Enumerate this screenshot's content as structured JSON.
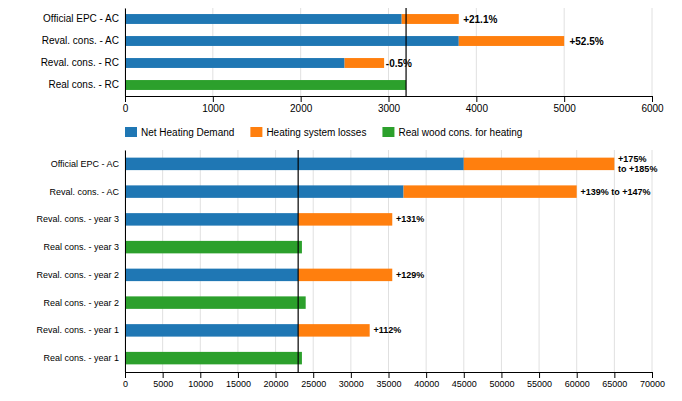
{
  "chart_data": [
    {
      "type": "bar",
      "orientation": "horizontal",
      "stacked": true,
      "categories": [
        "Official EPC - AC",
        "Reval. cons. - AC",
        "Reval. cons. - RC",
        "Real cons. - RC"
      ],
      "series": [
        {
          "name": "Net Heating Demand",
          "values": [
            3150,
            3800,
            2500,
            0
          ]
        },
        {
          "name": "Heating system losses",
          "values": [
            650,
            1200,
            450,
            0
          ]
        },
        {
          "name": "Real wood cons. for heating",
          "values": [
            0,
            0,
            0,
            3200
          ]
        }
      ],
      "reference_x": 3200,
      "annotations": [
        {
          "text": "+21.1%",
          "x": 3850,
          "category": "Official EPC - AC"
        },
        {
          "text": "+52.5%",
          "x": 5060,
          "category": "Reval. cons. - AC"
        },
        {
          "text": "-0.5%",
          "x": 2970,
          "category": "Reval. cons. - RC"
        }
      ],
      "xlim": [
        0,
        6000
      ],
      "xticks": [
        0,
        1000,
        2000,
        3000,
        4000,
        5000,
        6000
      ],
      "grid": true,
      "legend": "bottom"
    },
    {
      "type": "bar",
      "orientation": "horizontal",
      "stacked": true,
      "categories": [
        "Official EPC - AC",
        "Reval. cons. - AC",
        "Reval. cons. - year 3",
        "Real cons. - year 3",
        "Reval. cons. - year 2",
        "Real cons. - year 2",
        "Reval. cons. - year 1",
        "Real cons. - year 1"
      ],
      "series": [
        {
          "values": [
            45000,
            37000,
            23000,
            0,
            23000,
            0,
            23000,
            0
          ]
        },
        {
          "values": [
            20000,
            23000,
            12500,
            0,
            12500,
            0,
            9500,
            0
          ]
        },
        {
          "values": [
            0,
            0,
            0,
            23500,
            0,
            24000,
            0,
            23500
          ]
        }
      ],
      "reference_x": 23000,
      "annotations": [
        {
          "text": "+175%\nto +185%",
          "x": 65500,
          "category": "Official EPC - AC"
        },
        {
          "text": "+139% to +147%",
          "x": 60500,
          "category": "Reval. cons. - AC"
        },
        {
          "text": "+131%",
          "x": 36000,
          "category": "Reval. cons. - year 3"
        },
        {
          "text": "+129%",
          "x": 36000,
          "category": "Reval. cons. - year 2"
        },
        {
          "text": "+112%",
          "x": 33000,
          "category": "Reval. cons. - year 1"
        }
      ],
      "xlim": [
        0,
        70000
      ],
      "xticks": [
        0,
        5000,
        10000,
        15000,
        20000,
        25000,
        30000,
        35000,
        40000,
        45000,
        50000,
        55000,
        60000,
        65000,
        70000
      ],
      "grid": true
    }
  ]
}
